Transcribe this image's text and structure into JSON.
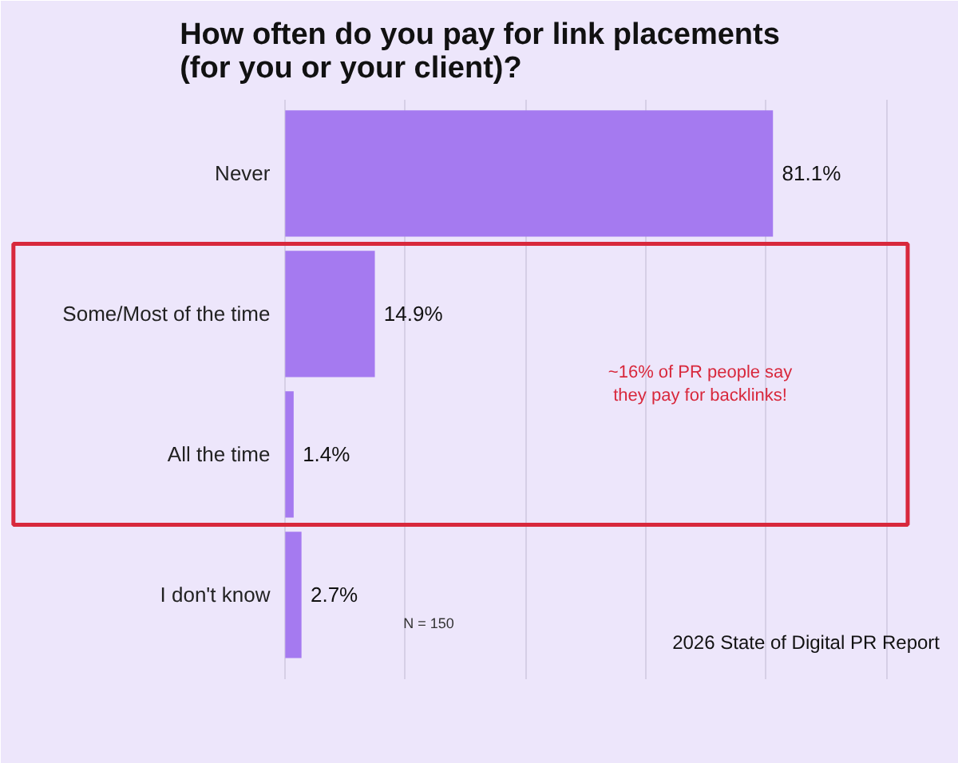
{
  "chart_data": {
    "type": "bar",
    "orientation": "horizontal",
    "title": "How often do you pay for link placements\n(for you or your client)?",
    "categories": [
      "Never",
      "Some/Most of the time",
      "All the time",
      "I don't know"
    ],
    "values": [
      81.1,
      14.9,
      1.4,
      2.7
    ],
    "value_labels": [
      "81.1%",
      "14.9%",
      "1.4%",
      "2.7%"
    ],
    "color": "#a57af0",
    "xticks": [
      {
        "value": 0,
        "label": null
      },
      {
        "value": 20,
        "label": null
      },
      {
        "value": 40,
        "label": null
      },
      {
        "value": 60,
        "label": null
      },
      {
        "value": 80,
        "label": null
      },
      {
        "value": 100,
        "label": null
      }
    ],
    "grid": "x",
    "tick_labels": "y",
    "annotations": [
      "~16% of PR people say\nthey pay for backlinks!",
      "N = 150",
      "2026 State of Digital PR Report"
    ]
  }
}
